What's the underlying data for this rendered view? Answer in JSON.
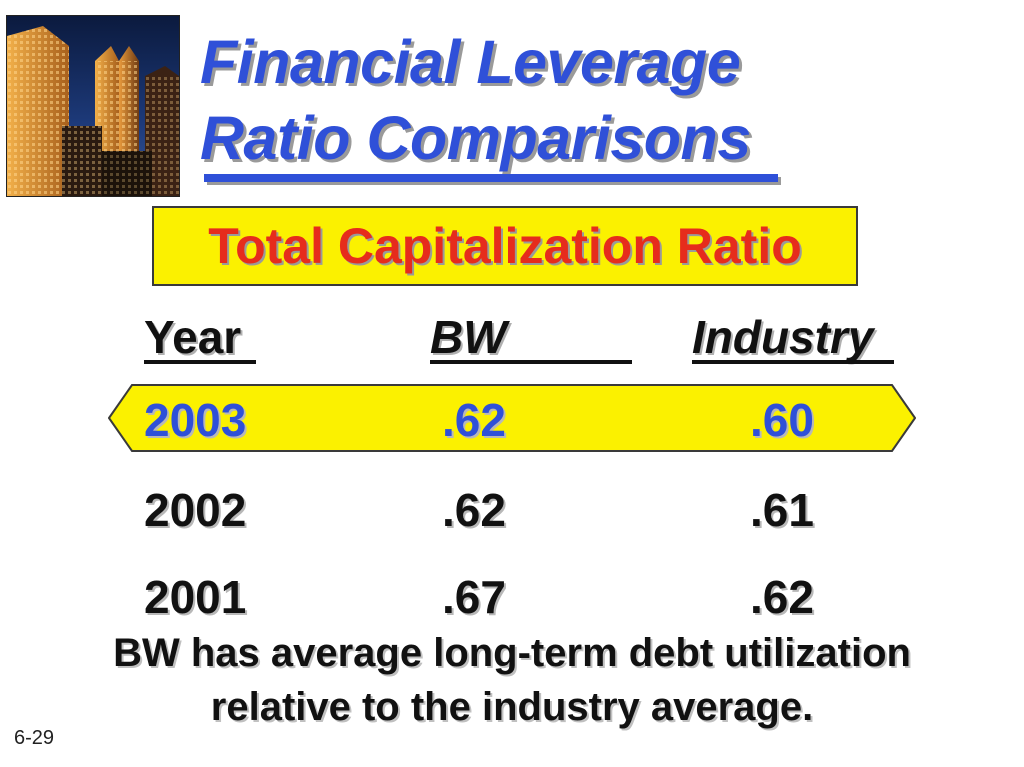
{
  "slide": {
    "title_lines": [
      "Financial Leverage",
      "Ratio Comparisons"
    ],
    "subtitle": "Total Capitalization Ratio",
    "table": {
      "headers": {
        "year": "Year",
        "bw": "BW",
        "industry": "Industry"
      },
      "rows": [
        {
          "year": "2003",
          "bw": ".62",
          "industry": ".60",
          "highlighted": true
        },
        {
          "year": "2002",
          "bw": ".62",
          "industry": ".61",
          "highlighted": false
        },
        {
          "year": "2001",
          "bw": ".67",
          "industry": ".62",
          "highlighted": false
        }
      ]
    },
    "caption_lines": [
      "BW has average long-term debt utilization",
      "relative to the industry average."
    ],
    "slide_number": "6-29"
  },
  "colors": {
    "title_blue": "#2f50d8",
    "subtitle_red": "#e62c1c",
    "highlight_yellow": "#fbf100",
    "text_black": "#111111"
  },
  "icons": {
    "photo": "city-skyscrapers-photo"
  }
}
